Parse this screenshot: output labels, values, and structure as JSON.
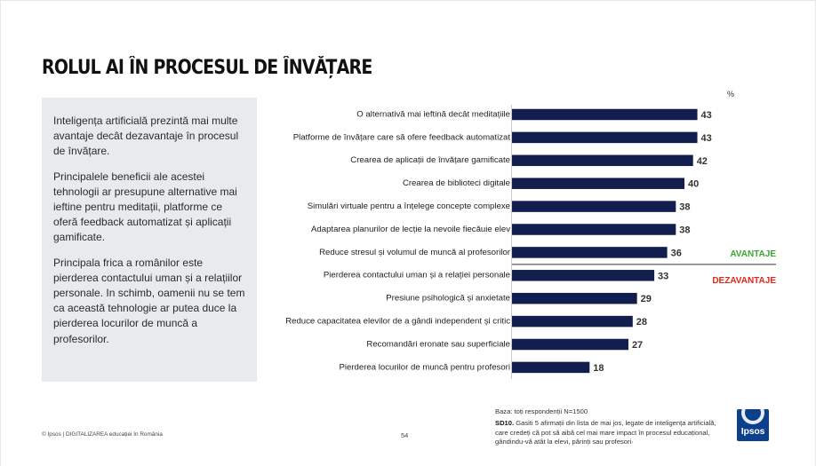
{
  "title": "ROLUL AI ÎN PROCESUL DE ÎNVĂȚARE",
  "summary": {
    "p1": "Inteligența artificială prezintă mai multe avantaje decât dezavantaje în procesul de învățare.",
    "p2": "Principalele beneficii ale acestei tehnologii ar presupune alternative mai ieftine pentru meditații, platforme ce oferă feedback automatizat și aplicații gamificate.",
    "p3": "Principala frica a românilor este pierderea contactului uman și a relațiilor personale. In schimb, oamenii nu se tem ca această tehnologie ar putea duce la pierderea locurilor de muncă a profesorilor."
  },
  "chart_data": {
    "type": "bar",
    "orientation": "horizontal",
    "unit_label": "%",
    "categories": [
      "O alternativă mai ieftină decât meditațiile",
      "Platforme de învățare care să ofere feedback automatizat",
      "Crearea de aplicații de învățare gamificate",
      "Crearea de biblioteci digitale",
      "Simulări virtuale pentru a înțelege concepte complexe",
      "Adaptarea planurilor de lecție la nevoile fiecăuie elev",
      "Reduce stresul și volumul de muncă al profesorilor",
      "Pierderea contactului uman și a relației personale",
      "Presiune psihologică și anxietate",
      "Reduce capacitatea elevilor de a gândi independent și critic",
      "Recomandări eronate sau superficiale",
      "Pierderea locurilor de muncă pentru profesori"
    ],
    "values": [
      43,
      43,
      42,
      40,
      38,
      38,
      36,
      33,
      29,
      28,
      27,
      18
    ],
    "groups": [
      {
        "label": "AVANTAJE",
        "color": "#3aa535",
        "count": 7
      },
      {
        "label": "DEZAVANTAJE",
        "color": "#e1261c",
        "count": 5
      }
    ],
    "bar_color": "#121e4d",
    "xlim": [
      0,
      50
    ]
  },
  "footer": {
    "copyright": "© Ipsos | DIGITALIZAREA educației în România",
    "page_number": "54",
    "base": "Baza: toți respondenții N=1500",
    "question_code": "SD10.",
    "question_text": "Gasiti 5 afirmații din lista de mai jos, legate de inteligența artificială, care credeți că pot să aibă cel mai mare impact în procesul educațional, gândindu-vă atât la elevi, părinți sau profesori·"
  },
  "logo": {
    "text": "Ipsos",
    "color": "#0c3f8c"
  }
}
